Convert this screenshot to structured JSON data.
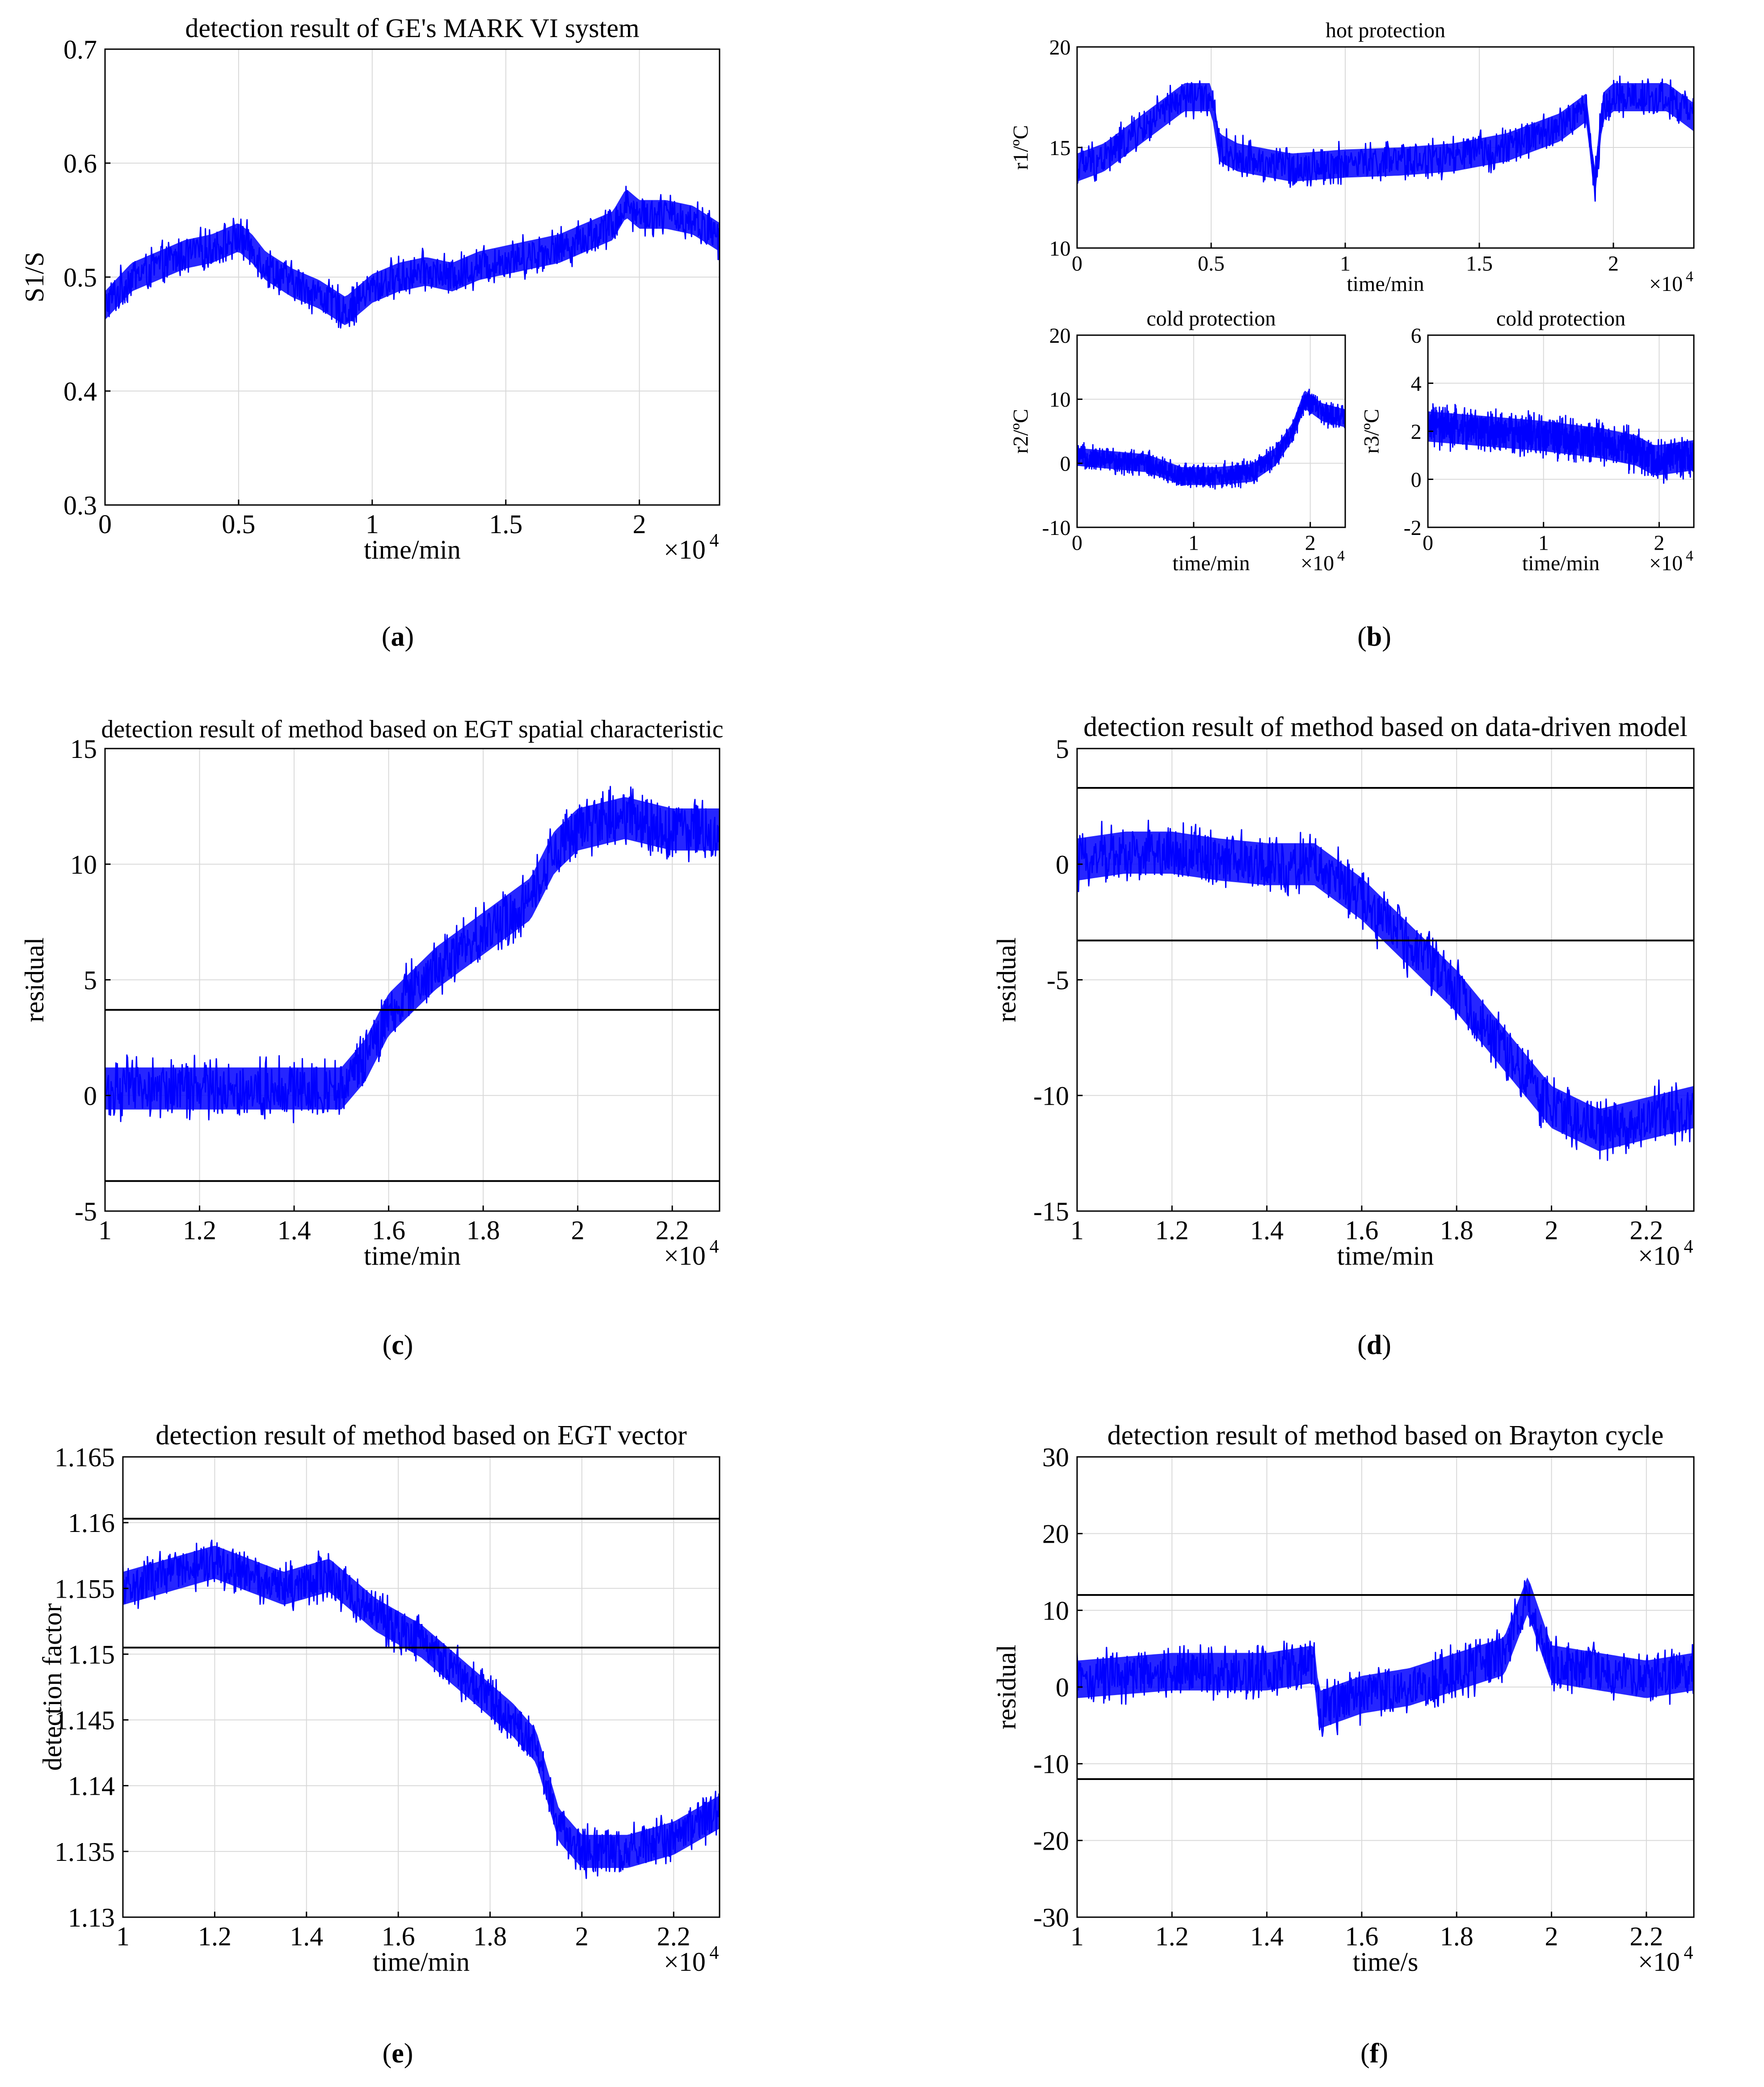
{
  "colors": {
    "signal": "#0000ff",
    "threshold": "#000000",
    "grid": "#d9d9d9",
    "axis": "#000000"
  },
  "captions": {
    "a": "a",
    "b": "b",
    "c": "c",
    "d": "d",
    "e": "e",
    "f": "f"
  },
  "chart_data": [
    {
      "id": "a",
      "type": "line",
      "title": "detection result of GE's MARK VI system",
      "xlabel": "time/min",
      "ylabel": "S1/S",
      "x_exponent": "×10",
      "x_exponent_power": "4",
      "xlim": [
        0,
        2.3
      ],
      "ylim": [
        0.3,
        0.7
      ],
      "xticks": [
        0,
        0.5,
        1,
        1.5,
        2
      ],
      "xtick_labels": [
        "0",
        "0.5",
        "1",
        "1.5",
        "2"
      ],
      "yticks": [
        0.3,
        0.4,
        0.5,
        0.6,
        0.7
      ],
      "ytick_labels": [
        "0.3",
        "0.4",
        "0.5",
        "0.6",
        "0.7"
      ],
      "grid": true,
      "series": [
        {
          "name": "S1/S",
          "x": [
            0,
            0.1,
            0.2,
            0.3,
            0.4,
            0.5,
            0.55,
            0.6,
            0.7,
            0.8,
            0.9,
            1.0,
            1.1,
            1.2,
            1.3,
            1.4,
            1.5,
            1.6,
            1.7,
            1.8,
            1.9,
            1.95,
            2.0,
            2.1,
            2.2,
            2.3
          ],
          "values": [
            0.475,
            0.5,
            0.51,
            0.52,
            0.525,
            0.535,
            0.525,
            0.51,
            0.495,
            0.485,
            0.47,
            0.49,
            0.5,
            0.505,
            0.5,
            0.51,
            0.515,
            0.52,
            0.525,
            0.535,
            0.545,
            0.565,
            0.555,
            0.555,
            0.55,
            0.535
          ],
          "noise": 0.018
        }
      ],
      "thresholds": []
    },
    {
      "id": "b1",
      "type": "line",
      "title": "hot protection",
      "xlabel": "time/min",
      "ylabel": "r1/ºC",
      "x_exponent": "×10",
      "x_exponent_power": "4",
      "xlim": [
        0,
        2.3
      ],
      "ylim": [
        10,
        20
      ],
      "xticks": [
        0,
        0.5,
        1,
        1.5,
        2
      ],
      "xtick_labels": [
        "0",
        "0.5",
        "1",
        "1.5",
        "2"
      ],
      "yticks": [
        10,
        15,
        20
      ],
      "ytick_labels": [
        "10",
        "15",
        "20"
      ],
      "grid": true,
      "series": [
        {
          "name": "r1",
          "x": [
            0,
            0.1,
            0.2,
            0.3,
            0.4,
            0.5,
            0.53,
            0.6,
            0.8,
            1.0,
            1.2,
            1.4,
            1.6,
            1.8,
            1.9,
            1.93,
            1.96,
            2.0,
            2.2,
            2.3
          ],
          "values": [
            14.0,
            14.5,
            15.5,
            16.5,
            17.5,
            17.5,
            15.0,
            14.5,
            14.0,
            14.2,
            14.3,
            14.5,
            15.0,
            16.0,
            17.0,
            13.0,
            17.0,
            17.5,
            17.5,
            16.5
          ],
          "noise": 1.0
        }
      ],
      "thresholds": []
    },
    {
      "id": "b2",
      "type": "line",
      "title": "cold protection",
      "xlabel": "time/min",
      "ylabel": "r2/ºC",
      "x_exponent": "×10",
      "x_exponent_power": "4",
      "xlim": [
        0,
        2.3
      ],
      "ylim": [
        -10,
        20
      ],
      "xticks": [
        0,
        1,
        2
      ],
      "xtick_labels": [
        "0",
        "1",
        "2"
      ],
      "yticks": [
        -10,
        0,
        10,
        20
      ],
      "ytick_labels": [
        "-10",
        "0",
        "10",
        "20"
      ],
      "grid": true,
      "series": [
        {
          "name": "r2",
          "x": [
            0,
            0.3,
            0.6,
            0.9,
            1.2,
            1.5,
            1.7,
            1.85,
            1.95,
            2.1,
            2.3
          ],
          "values": [
            1,
            0.5,
            0,
            -2,
            -2,
            -1.5,
            1,
            5,
            10,
            8,
            7
          ],
          "noise": 2.0
        }
      ],
      "thresholds": []
    },
    {
      "id": "b3",
      "type": "line",
      "title": "cold protection",
      "xlabel": "time/min",
      "ylabel": "r3/ºC",
      "x_exponent": "×10",
      "x_exponent_power": "4",
      "xlim": [
        0,
        2.3
      ],
      "ylim": [
        -2,
        6
      ],
      "xticks": [
        0,
        1,
        2
      ],
      "xtick_labels": [
        "0",
        "1",
        "2"
      ],
      "yticks": [
        -2,
        0,
        2,
        4,
        6
      ],
      "ytick_labels": [
        "-2",
        "0",
        "2",
        "4",
        "6"
      ],
      "grid": true,
      "series": [
        {
          "name": "r3",
          "x": [
            0,
            0.5,
            1.0,
            1.5,
            1.8,
            1.95,
            2.0,
            2.3
          ],
          "values": [
            2.2,
            2.0,
            1.8,
            1.5,
            1.2,
            0.8,
            0.8,
            1.0
          ],
          "noise": 0.9
        }
      ],
      "thresholds": []
    },
    {
      "id": "c",
      "type": "line",
      "title": "detection result of method based on EGT spatial characteristic",
      "xlabel": "time/min",
      "ylabel": "residual",
      "x_exponent": "×10",
      "x_exponent_power": "4",
      "xlim": [
        1.0,
        2.3
      ],
      "ylim": [
        -5,
        15
      ],
      "xticks": [
        1.0,
        1.2,
        1.4,
        1.6,
        1.8,
        2.0,
        2.2
      ],
      "xtick_labels": [
        "1",
        "1.2",
        "1.4",
        "1.6",
        "1.8",
        "2",
        "2.2"
      ],
      "yticks": [
        -5,
        0,
        5,
        10,
        15
      ],
      "ytick_labels": [
        "-5",
        "0",
        "5",
        "10",
        "15"
      ],
      "grid": true,
      "series": [
        {
          "name": "residual",
          "x": [
            1.0,
            1.2,
            1.4,
            1.5,
            1.55,
            1.6,
            1.7,
            1.8,
            1.9,
            1.95,
            2.0,
            2.1,
            2.2,
            2.3
          ],
          "values": [
            0.3,
            0.3,
            0.3,
            0.3,
            1.5,
            3.5,
            5.5,
            7.0,
            8.5,
            10.5,
            11.5,
            12.0,
            11.5,
            11.5
          ],
          "noise": 1.3
        }
      ],
      "thresholds": [
        3.7,
        -3.7
      ]
    },
    {
      "id": "d",
      "type": "line",
      "title": "detection result of  method based on data-driven model",
      "xlabel": "time/min",
      "ylabel": "residual",
      "x_exponent": "×10",
      "x_exponent_power": "4",
      "xlim": [
        1.0,
        2.3
      ],
      "ylim": [
        -15,
        5
      ],
      "xticks": [
        1.0,
        1.2,
        1.4,
        1.6,
        1.8,
        2.0,
        2.2
      ],
      "xtick_labels": [
        "1",
        "1.2",
        "1.4",
        "1.6",
        "1.8",
        "2",
        "2.2"
      ],
      "yticks": [
        -15,
        -10,
        -5,
        0,
        5
      ],
      "ytick_labels": [
        "-15",
        "-10",
        "-5",
        "0",
        "5"
      ],
      "grid": true,
      "series": [
        {
          "name": "residual",
          "x": [
            1.0,
            1.1,
            1.2,
            1.3,
            1.4,
            1.5,
            1.6,
            1.7,
            1.8,
            1.9,
            2.0,
            2.1,
            2.2,
            2.3
          ],
          "values": [
            0.2,
            0.5,
            0.5,
            0.2,
            0.0,
            0.0,
            -1.5,
            -3.5,
            -5.5,
            -8.0,
            -10.5,
            -11.5,
            -11.0,
            -10.5
          ],
          "noise": 1.3
        }
      ],
      "thresholds": [
        3.3,
        -3.3
      ]
    },
    {
      "id": "e",
      "type": "line",
      "title": "detection result of method based on EGT vector",
      "xlabel": "time/min",
      "ylabel": "detection factor",
      "x_exponent": "×10",
      "x_exponent_power": "4",
      "xlim": [
        1.0,
        2.3
      ],
      "ylim": [
        1.13,
        1.165
      ],
      "xticks": [
        1.0,
        1.2,
        1.4,
        1.6,
        1.8,
        2.0,
        2.2
      ],
      "xtick_labels": [
        "1",
        "1.2",
        "1.4",
        "1.6",
        "1.8",
        "2",
        "2.2"
      ],
      "yticks": [
        1.13,
        1.135,
        1.14,
        1.145,
        1.15,
        1.155,
        1.16,
        1.165
      ],
      "ytick_labels": [
        "1.13",
        "1.135",
        "1.14",
        "1.145",
        "1.15",
        "1.155",
        "1.16",
        "1.165"
      ],
      "grid": true,
      "series": [
        {
          "name": "detection factor",
          "x": [
            1.0,
            1.2,
            1.35,
            1.45,
            1.55,
            1.65,
            1.75,
            1.85,
            1.9,
            1.95,
            2.0,
            2.1,
            2.2,
            2.3
          ],
          "values": [
            1.155,
            1.157,
            1.155,
            1.156,
            1.153,
            1.151,
            1.148,
            1.145,
            1.143,
            1.137,
            1.135,
            1.135,
            1.136,
            1.138
          ],
          "noise": 0.0018
        }
      ],
      "thresholds": [
        1.1603,
        1.1505
      ]
    },
    {
      "id": "f",
      "type": "line",
      "title": "detection result of method based on Brayton cycle",
      "xlabel": "time/s",
      "ylabel": "residual",
      "x_exponent": "×10",
      "x_exponent_power": "4",
      "xlim": [
        1.0,
        2.3
      ],
      "ylim": [
        -30,
        30
      ],
      "xticks": [
        1.0,
        1.2,
        1.4,
        1.6,
        1.8,
        2.0,
        2.2
      ],
      "xtick_labels": [
        "1",
        "1.2",
        "1.4",
        "1.6",
        "1.8",
        "2",
        "2.2"
      ],
      "yticks": [
        -30,
        -20,
        -10,
        0,
        10,
        20,
        30
      ],
      "ytick_labels": [
        "-30",
        "-20",
        "-10",
        "0",
        "10",
        "20",
        "30"
      ],
      "grid": true,
      "series": [
        {
          "name": "residual",
          "x": [
            1.0,
            1.2,
            1.4,
            1.5,
            1.51,
            1.6,
            1.7,
            1.8,
            1.9,
            1.95,
            2.0,
            2.1,
            2.2,
            2.3
          ],
          "values": [
            1.0,
            2.0,
            2.0,
            3.0,
            -3.0,
            -1.0,
            0.0,
            2.0,
            4.0,
            12.0,
            3.0,
            2.0,
            1.0,
            2.0
          ],
          "noise": 3.5
        }
      ],
      "thresholds": [
        12,
        -12
      ]
    }
  ]
}
